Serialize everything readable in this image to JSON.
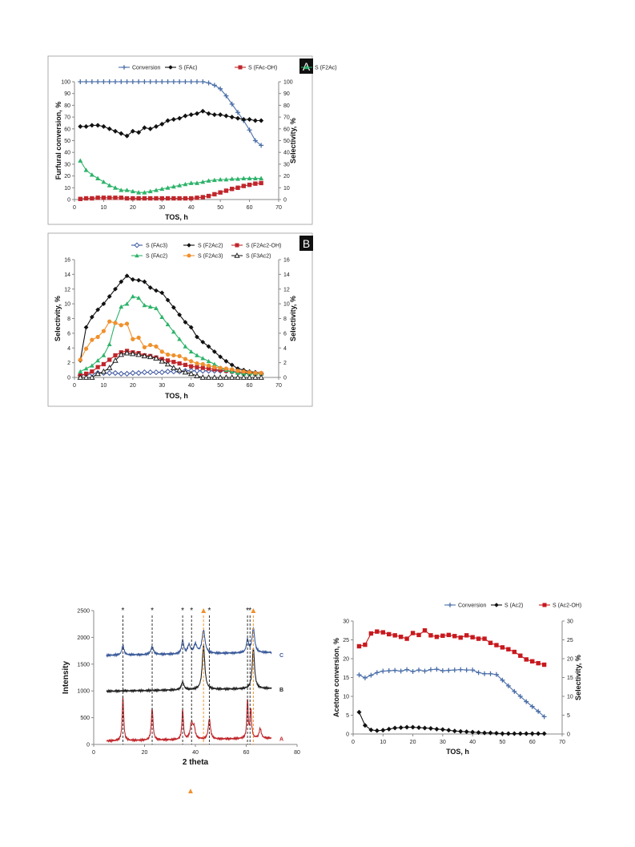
{
  "chart_data": [
    {
      "id": "A",
      "type": "line",
      "panel_label": "A",
      "xlabel": "TOS, h",
      "ylabel": "Furfural  conversion, %",
      "y2label": "Selectivity, %",
      "xlim": [
        0,
        70
      ],
      "xticks": [
        0,
        10,
        20,
        30,
        40,
        50,
        60,
        70
      ],
      "ylim": [
        0,
        100
      ],
      "yticks": [
        0,
        10,
        20,
        30,
        40,
        50,
        60,
        70,
        80,
        90,
        100
      ],
      "y2lim": [
        0,
        100
      ],
      "y2ticks": [
        0,
        10,
        20,
        30,
        40,
        50,
        60,
        70,
        80,
        90,
        100
      ],
      "legend": "top",
      "grid": false,
      "series": [
        {
          "name": "Conversion",
          "color": "#4a6ea8",
          "marker": "plus",
          "x": [
            2,
            4,
            6,
            8,
            10,
            12,
            14,
            16,
            18,
            20,
            22,
            24,
            26,
            28,
            30,
            32,
            34,
            36,
            38,
            40,
            42,
            44,
            46,
            48,
            50,
            52,
            54,
            56,
            58,
            60,
            62,
            64
          ],
          "y": [
            100,
            100,
            100,
            100,
            100,
            100,
            100,
            100,
            100,
            100,
            100,
            100,
            100,
            100,
            100,
            100,
            100,
            100,
            100,
            100,
            100,
            100,
            99,
            97,
            94,
            88,
            81,
            74,
            67,
            59,
            50,
            46
          ]
        },
        {
          "name": "S (FAc)",
          "color": "#111111",
          "marker": "diamond",
          "x": [
            2,
            4,
            6,
            8,
            10,
            12,
            14,
            16,
            18,
            20,
            22,
            24,
            26,
            28,
            30,
            32,
            34,
            36,
            38,
            40,
            42,
            44,
            46,
            48,
            50,
            52,
            54,
            56,
            58,
            60,
            62,
            64
          ],
          "y": [
            62,
            62,
            63,
            63,
            62,
            60,
            58,
            56,
            54,
            58,
            57,
            61,
            60,
            62,
            64,
            67,
            68,
            69,
            71,
            72,
            73,
            75,
            73,
            72,
            72,
            71,
            70,
            69,
            68,
            68,
            67,
            67
          ]
        },
        {
          "name": "S (FAc-OH)",
          "color": "#c0262b",
          "marker": "square",
          "x": [
            2,
            4,
            6,
            8,
            10,
            12,
            14,
            16,
            18,
            20,
            22,
            24,
            26,
            28,
            30,
            32,
            34,
            36,
            38,
            40,
            42,
            44,
            46,
            48,
            50,
            52,
            54,
            56,
            58,
            60,
            62,
            64
          ],
          "y": [
            0.5,
            1,
            1,
            1.5,
            1.5,
            1.5,
            1.5,
            1.5,
            1,
            1,
            1,
            1,
            1,
            1,
            1,
            1,
            1,
            1,
            1,
            1,
            1.5,
            2,
            3,
            4.5,
            6,
            7.5,
            9,
            10,
            11.5,
            12.5,
            13.5,
            14
          ]
        },
        {
          "name": "S (F2Ac)",
          "color": "#2db36a",
          "marker": "triangle",
          "x": [
            2,
            4,
            6,
            8,
            10,
            12,
            14,
            16,
            18,
            20,
            22,
            24,
            26,
            28,
            30,
            32,
            34,
            36,
            38,
            40,
            42,
            44,
            46,
            48,
            50,
            52,
            54,
            56,
            58,
            60,
            62,
            64
          ],
          "y": [
            33,
            25,
            21,
            18,
            15,
            12,
            10,
            8,
            8,
            7,
            6,
            6,
            7,
            8,
            9,
            10,
            11,
            12,
            13,
            14,
            14,
            15,
            16,
            16.5,
            17,
            17,
            17.5,
            17.5,
            18,
            18,
            18,
            18
          ]
        }
      ]
    },
    {
      "id": "B",
      "type": "line",
      "panel_label": "B",
      "xlabel": "TOS, h",
      "ylabel": "Selectivity, %",
      "y2label": "Selectivity, %",
      "xlim": [
        0,
        70
      ],
      "xticks": [
        0,
        10,
        20,
        30,
        40,
        50,
        60,
        70
      ],
      "ylim": [
        0,
        16
      ],
      "yticks": [
        0,
        2,
        4,
        6,
        8,
        10,
        12,
        14,
        16
      ],
      "y2lim": [
        0,
        16
      ],
      "y2ticks": [
        0,
        2,
        4,
        6,
        8,
        10,
        12,
        14,
        16
      ],
      "legend": "top",
      "grid": false,
      "series": [
        {
          "name": "S (FAc3)",
          "color": "#3b55a0",
          "marker": "diamond-open",
          "x": [
            2,
            4,
            6,
            8,
            10,
            12,
            14,
            16,
            18,
            20,
            22,
            24,
            26,
            28,
            30,
            32,
            34,
            36,
            38,
            40,
            42,
            44,
            46,
            48,
            50,
            52,
            54,
            56,
            58,
            60,
            62,
            64
          ],
          "y": [
            0.3,
            0.4,
            0.5,
            0.6,
            0.6,
            0.6,
            0.6,
            0.5,
            0.5,
            0.6,
            0.6,
            0.7,
            0.7,
            0.7,
            0.7,
            0.8,
            0.8,
            0.8,
            0.9,
            0.9,
            0.9,
            0.9,
            0.9,
            0.9,
            0.9,
            0.9,
            0.8,
            0.7,
            0.6,
            0.5,
            0.5,
            0.5
          ]
        },
        {
          "name": "S (F2Ac2)",
          "color": "#111111",
          "marker": "diamond",
          "x": [
            2,
            4,
            6,
            8,
            10,
            12,
            14,
            16,
            18,
            20,
            22,
            24,
            26,
            28,
            30,
            32,
            34,
            36,
            38,
            40,
            42,
            44,
            46,
            48,
            50,
            52,
            54,
            56,
            58,
            60,
            62,
            64
          ],
          "y": [
            2.3,
            6.8,
            8.2,
            9.2,
            10,
            11,
            12,
            13,
            13.8,
            13.3,
            13.2,
            13,
            12.2,
            11.8,
            11.5,
            10.5,
            9.5,
            8.5,
            7.5,
            6.8,
            5.5,
            4.8,
            4.2,
            3.5,
            2.8,
            2.2,
            1.7,
            1.2,
            1,
            0.8,
            0.7,
            0.6
          ]
        },
        {
          "name": "S (F2Ac2-OH)",
          "color": "#c0262b",
          "marker": "square",
          "x": [
            2,
            4,
            6,
            8,
            10,
            12,
            14,
            16,
            18,
            20,
            22,
            24,
            26,
            28,
            30,
            32,
            34,
            36,
            38,
            40,
            42,
            44,
            46,
            48,
            50,
            52,
            54,
            56,
            58,
            60,
            62,
            64
          ],
          "y": [
            0.3,
            0.5,
            0.8,
            1.4,
            1.8,
            2.4,
            3,
            3.4,
            3.6,
            3.4,
            3.3,
            3,
            2.9,
            2.7,
            2.5,
            2.3,
            2.1,
            1.9,
            1.7,
            1.5,
            1.4,
            1.3,
            1.2,
            1.1,
            1,
            0.9,
            0.8,
            0.7,
            0.6,
            0.6,
            0.5,
            0.5
          ]
        },
        {
          "name": "S (FAc2)",
          "color": "#2db36a",
          "marker": "triangle",
          "x": [
            2,
            4,
            6,
            8,
            10,
            12,
            14,
            16,
            18,
            20,
            22,
            24,
            26,
            28,
            30,
            32,
            34,
            36,
            38,
            40,
            42,
            44,
            46,
            48,
            50,
            52,
            54,
            56,
            58,
            60,
            62,
            64
          ],
          "y": [
            0.8,
            1.2,
            1.6,
            2.3,
            3,
            4.5,
            7.5,
            9.6,
            10,
            11,
            10.8,
            9.8,
            9.6,
            9.4,
            8.2,
            7.2,
            6.2,
            5.2,
            4.2,
            3.5,
            3,
            2.6,
            2.2,
            1.8,
            1.3,
            1,
            0.8,
            0.6,
            0.5,
            0.5,
            0.5,
            0.5
          ]
        },
        {
          "name": "S (F2Ac3)",
          "color": "#f0902c",
          "marker": "circle",
          "x": [
            2,
            4,
            6,
            8,
            10,
            12,
            14,
            16,
            18,
            20,
            22,
            24,
            26,
            28,
            30,
            32,
            34,
            36,
            38,
            40,
            42,
            44,
            46,
            48,
            50,
            52,
            54,
            56,
            58,
            60,
            62,
            64
          ],
          "y": [
            2.4,
            3.9,
            5.1,
            5.5,
            6.3,
            7.6,
            7.4,
            7.1,
            7.3,
            5.2,
            5.4,
            4.1,
            4.4,
            4.2,
            3.5,
            3.1,
            3,
            2.9,
            2.5,
            2.2,
            1.9,
            1.8,
            1.6,
            1.4,
            1.3,
            1.2,
            1.1,
            0.9,
            0.8,
            0.7,
            0.6,
            0.6
          ]
        },
        {
          "name": "S (F3Ac2)",
          "color": "#222222",
          "marker": "triangle-open",
          "x": [
            2,
            4,
            6,
            8,
            10,
            12,
            14,
            16,
            18,
            20,
            22,
            24,
            26,
            28,
            30,
            32,
            34,
            36,
            38,
            40,
            42,
            44,
            46,
            48,
            50,
            52,
            54,
            56,
            58,
            60,
            62,
            64
          ],
          "y": [
            0,
            0,
            0,
            0.5,
            0.8,
            1.3,
            2.3,
            3.1,
            3.3,
            3.2,
            3.1,
            2.9,
            2.8,
            2.6,
            2.2,
            1.8,
            1.3,
            1,
            0.7,
            0.5,
            0.2,
            0,
            0,
            0,
            0,
            0,
            0,
            0,
            0,
            0,
            0,
            0
          ]
        }
      ]
    },
    {
      "id": "XRD",
      "type": "line",
      "xlabel": "2 theta",
      "ylabel": "Intensity",
      "xlim": [
        0,
        80
      ],
      "xticks": [
        0,
        20,
        40,
        60,
        80
      ],
      "ylim": [
        0,
        2500
      ],
      "yticks": [
        0,
        500,
        1000,
        1500,
        2000,
        2500
      ],
      "grid": false,
      "star_positions": [
        11.5,
        23,
        35,
        38.5,
        45.5,
        60.5,
        61.5
      ],
      "triangle_positions": [
        43.2,
        62.8
      ],
      "series": [
        {
          "name": "A",
          "color": "#c0262b",
          "baseline": 100
        },
        {
          "name": "B",
          "color": "#222222",
          "baseline": 1030
        },
        {
          "name": "C",
          "color": "#3a5a9a",
          "baseline": 1700
        }
      ]
    },
    {
      "id": "Acetone",
      "type": "line",
      "xlabel": "TOS, h",
      "ylabel": "Acetone  conversion, %",
      "y2label": "Selectivity, %",
      "xlim": [
        0,
        70
      ],
      "xticks": [
        0,
        10,
        20,
        30,
        40,
        50,
        60,
        70
      ],
      "ylim": [
        0,
        30
      ],
      "yticks": [
        0,
        5,
        10,
        15,
        20,
        25,
        30
      ],
      "y2lim": [
        0,
        30
      ],
      "y2ticks": [
        0,
        5,
        10,
        15,
        20,
        25,
        30
      ],
      "legend": "top",
      "grid": false,
      "series": [
        {
          "name": "Conversion",
          "color": "#4a6ea8",
          "marker": "plus",
          "x": [
            2,
            4,
            6,
            8,
            10,
            12,
            14,
            16,
            18,
            20,
            22,
            24,
            26,
            28,
            30,
            32,
            34,
            36,
            38,
            40,
            42,
            44,
            46,
            48,
            50,
            52,
            54,
            56,
            58,
            60,
            62,
            64
          ],
          "y": [
            15.7,
            14.9,
            15.6,
            16.3,
            16.7,
            16.8,
            16.9,
            16.7,
            17.1,
            16.6,
            17.0,
            16.7,
            17.1,
            17.2,
            16.8,
            16.9,
            17.0,
            17.1,
            17.0,
            17.0,
            16.3,
            16.0,
            16.0,
            15.8,
            14.3,
            12.8,
            11.3,
            10.0,
            8.6,
            7.3,
            6.0,
            4.6
          ]
        },
        {
          "name": "S (Ac2)",
          "color": "#111111",
          "marker": "diamond",
          "x": [
            2,
            4,
            6,
            8,
            10,
            12,
            14,
            16,
            18,
            20,
            22,
            24,
            26,
            28,
            30,
            32,
            34,
            36,
            38,
            40,
            42,
            44,
            46,
            48,
            50,
            52,
            54,
            56,
            58,
            60,
            62,
            64
          ],
          "y": [
            5.8,
            2.3,
            1.1,
            0.9,
            1.0,
            1.3,
            1.6,
            1.7,
            1.8,
            1.8,
            1.7,
            1.6,
            1.5,
            1.3,
            1.2,
            1.0,
            0.8,
            0.7,
            0.6,
            0.5,
            0.4,
            0.3,
            0.3,
            0.2,
            0.1,
            0.1,
            0.1,
            0.1,
            0.1,
            0.1,
            0.1,
            0.1
          ]
        },
        {
          "name": "S (Ac2-OH)",
          "color": "#c8191e",
          "marker": "square",
          "x": [
            2,
            4,
            6,
            8,
            10,
            12,
            14,
            16,
            18,
            20,
            22,
            24,
            26,
            28,
            30,
            32,
            34,
            36,
            38,
            40,
            42,
            44,
            46,
            48,
            50,
            52,
            54,
            56,
            58,
            60,
            62,
            64
          ],
          "y": [
            23.3,
            23.7,
            26.7,
            27.2,
            27.0,
            26.5,
            26.2,
            25.8,
            25.3,
            26.8,
            26.3,
            27.5,
            26.2,
            25.8,
            26.1,
            26.3,
            26.0,
            25.6,
            26.2,
            25.7,
            25.3,
            25.3,
            24.2,
            23.6,
            23.0,
            22.5,
            21.8,
            20.8,
            19.8,
            19.3,
            18.8,
            18.4
          ]
        }
      ]
    }
  ],
  "xrd_legend_symbol": "▲"
}
